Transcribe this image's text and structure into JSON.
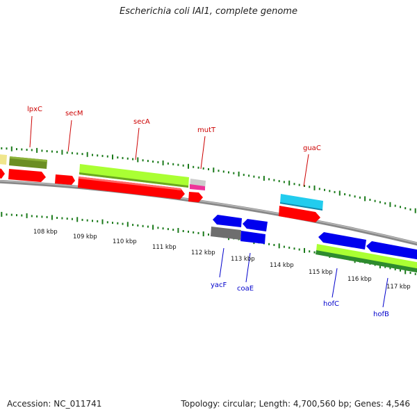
{
  "title": "Escherichia coli IAI1, complete genome",
  "footer": {
    "accession": "Accession: NC_011741",
    "topology": "Topology: circular; Length: 4,700,560 bp; Genes: 4,546"
  },
  "colors": {
    "plus_label": "#cc0000",
    "minus_label": "#0000cc",
    "tick": "#1a7a1a",
    "backbone": "#8a8a8a",
    "cds": "#ff0000",
    "cds_minus": "#0000ee",
    "lightgreen": "#aaff33",
    "olive": "#6b8e23",
    "darkgreen": "#2e8b2e",
    "cyan": "#22ccee",
    "gray": "#777777",
    "magenta": "#ee3399",
    "yellow": "#f0e68c"
  },
  "scale_labels": [
    "108 kbp",
    "109 kbp",
    "110 kbp",
    "111 kbp",
    "112 kbp",
    "113 kbp",
    "114 kbp",
    "115 kbp",
    "116 kbp",
    "117 kbp"
  ],
  "genes_plus": [
    {
      "name": "lpxC"
    },
    {
      "name": "secM"
    },
    {
      "name": "secA"
    },
    {
      "name": "mutT"
    },
    {
      "name": "guaC"
    }
  ],
  "genes_minus": [
    {
      "name": "yacF"
    },
    {
      "name": "coaE"
    },
    {
      "name": "hofC"
    },
    {
      "name": "hofB"
    }
  ]
}
